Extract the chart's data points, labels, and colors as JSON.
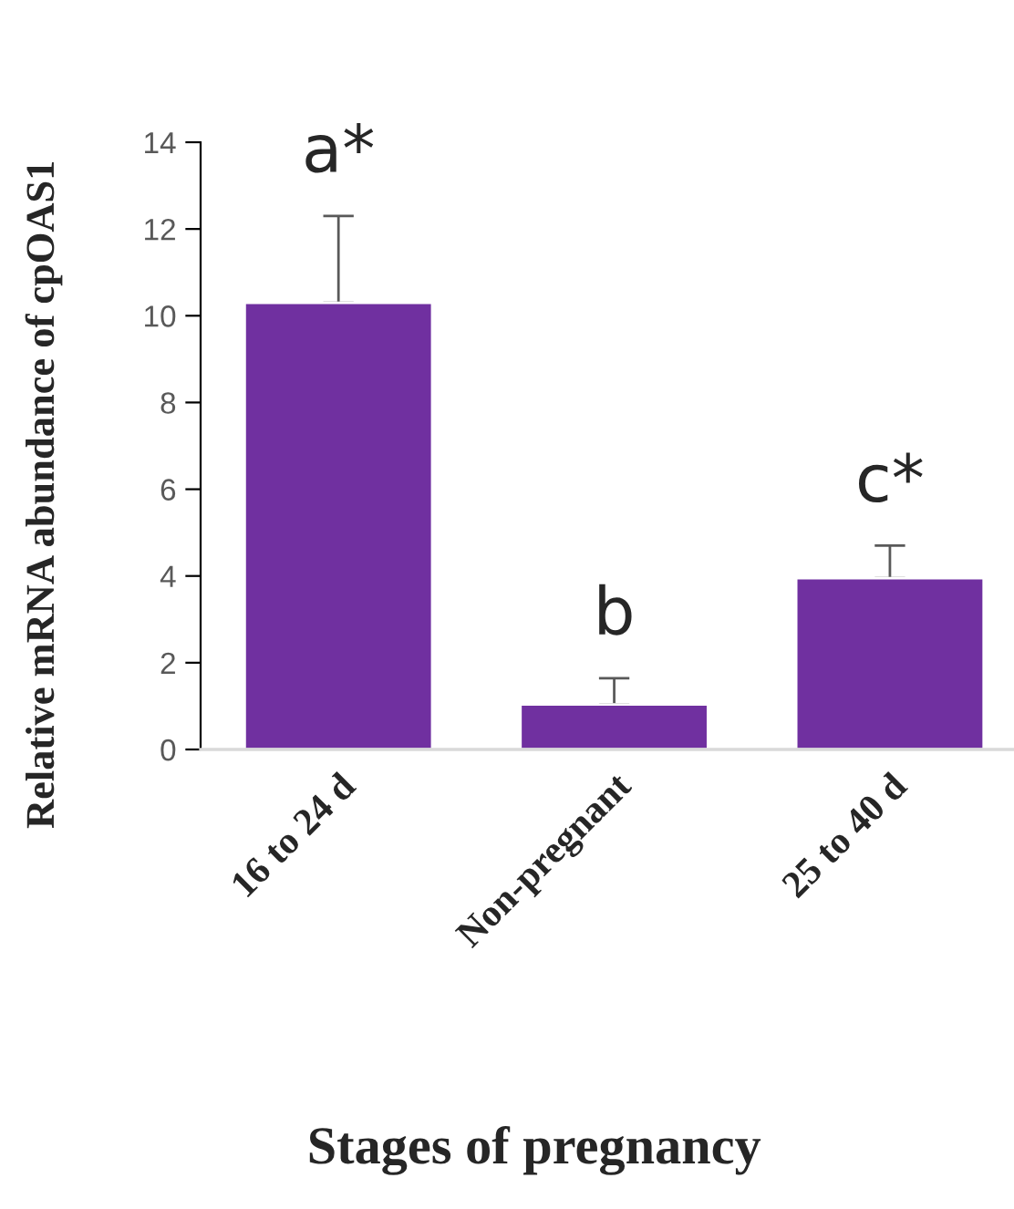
{
  "chart_data": {
    "type": "bar",
    "xlabel": "Stages of pregnancy",
    "ylabel": "Relative mRNA abundance of cpOAS1",
    "categories": [
      "16 to 24 d",
      "Non-pregnant",
      "25 to 40 d"
    ],
    "values": [
      10.3,
      1.04,
      3.95
    ],
    "errors": [
      [
        10.3,
        12.3
      ],
      [
        1.04,
        1.64
      ],
      [
        3.95,
        4.7
      ]
    ],
    "color": "#7030a0",
    "ylim": [
      0,
      14
    ],
    "yticks": [
      0,
      2,
      4,
      6,
      8,
      10,
      12,
      14
    ],
    "grid": false,
    "annotations": [
      "a*",
      "b",
      "c*"
    ]
  }
}
